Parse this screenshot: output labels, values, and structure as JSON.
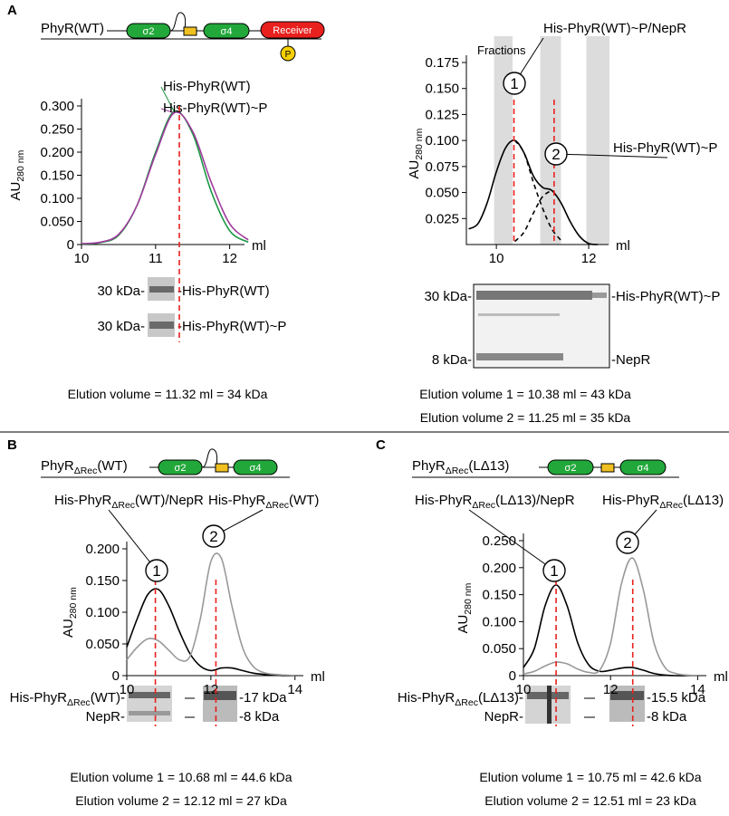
{
  "figure": {
    "A": {
      "letter": "A",
      "construct": "PhyR(WT)",
      "domains": [
        "σ2",
        "σ4",
        "Receiver"
      ],
      "phospho": "P",
      "gel_left": {
        "markers": [
          "30 kDa-",
          "30 kDa-"
        ],
        "bands": [
          "-His-PhyR(WT)",
          "-His-PhyR(WT)~P"
        ]
      },
      "elution_left": [
        "Elution volume = 11.32 ml = 34 kDa"
      ],
      "gel_right": {
        "markers": [
          "30 kDa-",
          "8 kDa-"
        ],
        "bands": [
          "-His-PhyR(WT)~P",
          "-NepR"
        ]
      },
      "elution_right": [
        "Elution volume 1 = 10.38 ml = 43 kDa",
        "Elution volume 2 = 11.25 ml = 35 kDa"
      ]
    },
    "B": {
      "letter": "B",
      "construct": {
        "main": "PhyR",
        "sub": "ΔRec",
        "rest": "(WT)"
      },
      "domains": [
        "σ2",
        "σ4"
      ],
      "gel_left": [
        {
          "main": "His-PhyR",
          "sub": "ΔRec",
          "rest": "(WT)-"
        },
        "NepR-"
      ],
      "gel_right": [
        "-17 kDa",
        "-8 kDa"
      ],
      "elution": [
        "Elution volume 1 = 10.68 ml = 44.6 kDa",
        "Elution volume 2 = 12.12 ml = 27 kDa"
      ]
    },
    "C": {
      "letter": "C",
      "construct": {
        "main": "PhyR",
        "sub": "ΔRec",
        "rest": "(LΔ13)"
      },
      "domains": [
        "σ2",
        "σ4"
      ],
      "gel_left": [
        {
          "main": "His-PhyR",
          "sub": "ΔRec",
          "rest": "(LΔ13)-"
        },
        "NepR-"
      ],
      "gel_right": [
        "-15.5 kDa",
        "-8 kDa"
      ],
      "elution": [
        "Elution volume 1 = 10.75 ml = 42.6 kDa",
        "Elution volume 2 = 12.51 ml = 23 kDa"
      ]
    }
  },
  "chart_data": [
    {
      "type": "line",
      "xlabel": "ml",
      "ylabel": {
        "main": "AU",
        "sub": "280 nm"
      },
      "x": [
        10,
        10.25,
        10.5,
        10.75,
        11,
        11.25,
        11.5,
        11.75,
        12,
        12.25
      ],
      "series": [
        {
          "name": "His-PhyR(WT)",
          "color": "#1a9641",
          "values": [
            0.001,
            0.004,
            0.02,
            0.085,
            0.2,
            0.288,
            0.24,
            0.115,
            0.03,
            0.005
          ]
        },
        {
          "name": "His-PhyR(WT)~P",
          "color": "#a03c9e",
          "values": [
            0.002,
            0.005,
            0.022,
            0.085,
            0.195,
            0.285,
            0.245,
            0.135,
            0.045,
            0.01
          ]
        }
      ],
      "xlim": [
        10,
        12.2
      ],
      "ylim": [
        0,
        0.3
      ],
      "xticks": [
        10,
        11,
        12
      ],
      "yticks": [
        0,
        {
          "value": 0.05,
          "label": "0.050"
        },
        {
          "value": 0.1,
          "label": "0.100"
        },
        {
          "value": 0.15,
          "label": "0.150"
        },
        {
          "value": 0.2,
          "label": "0.200"
        },
        {
          "value": 0.25,
          "label": "0.250"
        },
        {
          "value": 0.3,
          "label": "0.300"
        }
      ],
      "markers": [
        11.32
      ]
    },
    {
      "type": "line",
      "xlabel": "ml",
      "ylabel": {
        "main": "AU",
        "sub": "280 nm"
      },
      "bands_label": "Fractions",
      "fraction_bands": [
        [
          9.95,
          10.35
        ],
        [
          10.95,
          11.4
        ],
        [
          11.95,
          12.45
        ]
      ],
      "x": [
        9.4,
        9.6,
        9.8,
        10,
        10.2,
        10.4,
        10.6,
        10.8,
        11,
        11.2,
        11.4,
        11.6,
        11.8,
        12,
        12.2
      ],
      "series": [
        {
          "color": "#000000",
          "values": [
            0.015,
            0.02,
            0.04,
            0.07,
            0.093,
            0.1,
            0.088,
            0.066,
            0.055,
            0.052,
            0.04,
            0.022,
            0.008,
            0.001,
            0
          ]
        },
        {
          "color": "#000000",
          "dash": true,
          "values": [
            null,
            null,
            null,
            null,
            null,
            0.1,
            0.088,
            0.06,
            0.035,
            0.015,
            0.004,
            null,
            null,
            null,
            null
          ]
        },
        {
          "color": "#000000",
          "dash": true,
          "values": [
            null,
            null,
            null,
            null,
            null,
            0.003,
            0.012,
            0.03,
            0.046,
            0.052,
            null,
            null,
            null,
            null,
            null
          ]
        }
      ],
      "xlim": [
        9.35,
        12.43
      ],
      "ylim": [
        0,
        0.175
      ],
      "xticks": [
        10,
        12
      ],
      "yticks": [
        {
          "value": 0.025,
          "label": "0.025"
        },
        {
          "value": 0.05,
          "label": "0.050"
        },
        {
          "value": 0.075,
          "label": "0.075"
        },
        {
          "value": 0.1,
          "label": "0.100"
        },
        {
          "value": 0.125,
          "label": "0.125"
        },
        {
          "value": 0.15,
          "label": "0.150"
        },
        {
          "value": 0.175,
          "label": "0.175"
        }
      ],
      "markers": [
        10.38,
        11.25
      ],
      "annotations": [
        {
          "circle": "1",
          "label": "His-PhyR(WT)~P/NepR"
        },
        {
          "circle": "2",
          "label": "His-PhyR(WT)~P"
        }
      ]
    },
    {
      "type": "line",
      "xlabel": "ml",
      "ylabel": {
        "main": "AU",
        "sub": "280 nm"
      },
      "x": [
        10,
        10.25,
        10.5,
        10.75,
        11,
        11.25,
        11.5,
        11.75,
        12,
        12.25,
        12.5,
        12.75,
        13,
        13.25,
        13.5,
        13.75,
        14
      ],
      "series": [
        {
          "color": "#000000",
          "values": [
            0.045,
            0.09,
            0.128,
            0.136,
            0.11,
            0.07,
            0.035,
            0.015,
            0.008,
            0.012,
            0.012,
            0.008,
            0.004,
            0.002,
            0.001,
            0,
            0
          ]
        },
        {
          "color": "#999999",
          "values": [
            0.025,
            0.045,
            0.058,
            0.055,
            0.04,
            0.025,
            0.03,
            0.09,
            0.18,
            0.185,
            0.11,
            0.045,
            0.015,
            0.005,
            0.002,
            0.001,
            0
          ]
        }
      ],
      "xlim": [
        10,
        14.2
      ],
      "ylim": [
        0,
        0.2
      ],
      "xticks": [
        10,
        12,
        14
      ],
      "yticks": [
        0,
        {
          "value": 0.05,
          "label": "0.050"
        },
        {
          "value": 0.1,
          "label": "0.100"
        },
        {
          "value": 0.15,
          "label": "0.150"
        },
        {
          "value": 0.2,
          "label": "0.200"
        }
      ],
      "markers": [
        10.68,
        12.12
      ],
      "annotations": [
        {
          "circle": "1",
          "label": {
            "main": "His-PhyR",
            "sub": "ΔRec",
            "rest": "(WT)/NepR"
          }
        },
        {
          "circle": "2",
          "label": {
            "main": "His-PhyR",
            "sub": "ΔRec",
            "rest": "(WT)"
          }
        }
      ]
    },
    {
      "type": "line",
      "xlabel": "ml",
      "ylabel": {
        "main": "AU",
        "sub": "280 nm"
      },
      "x": [
        10,
        10.25,
        10.5,
        10.75,
        11,
        11.25,
        11.5,
        11.75,
        12,
        12.25,
        12.5,
        12.75,
        13,
        13.25,
        13.5,
        13.75,
        14
      ],
      "series": [
        {
          "color": "#000000",
          "values": [
            0.015,
            0.05,
            0.13,
            0.168,
            0.13,
            0.06,
            0.02,
            0.008,
            0.01,
            0.014,
            0.015,
            0.01,
            0.004,
            0.001,
            0,
            0,
            0
          ]
        },
        {
          "color": "#999999",
          "values": [
            0.003,
            0.008,
            0.018,
            0.025,
            0.022,
            0.012,
            0.006,
            0.01,
            0.06,
            0.17,
            0.218,
            0.16,
            0.06,
            0.015,
            0.004,
            0.001,
            0
          ]
        }
      ],
      "xlim": [
        10,
        14.2
      ],
      "ylim": [
        0,
        0.25
      ],
      "xticks": [
        10,
        12,
        14
      ],
      "yticks": [
        0,
        {
          "value": 0.05,
          "label": "0.050"
        },
        {
          "value": 0.1,
          "label": "0.100"
        },
        {
          "value": 0.15,
          "label": "0.150"
        },
        {
          "value": 0.2,
          "label": "0.200"
        },
        {
          "value": 0.25,
          "label": "0.250"
        }
      ],
      "markers": [
        10.75,
        12.51
      ],
      "annotations": [
        {
          "circle": "1",
          "label": {
            "main": "His-PhyR",
            "sub": "ΔRec",
            "rest": "(LΔ13)/NepR"
          }
        },
        {
          "circle": "2",
          "label": {
            "main": "His-PhyR",
            "sub": "ΔRec",
            "rest": "(LΔ13)"
          }
        }
      ]
    }
  ]
}
